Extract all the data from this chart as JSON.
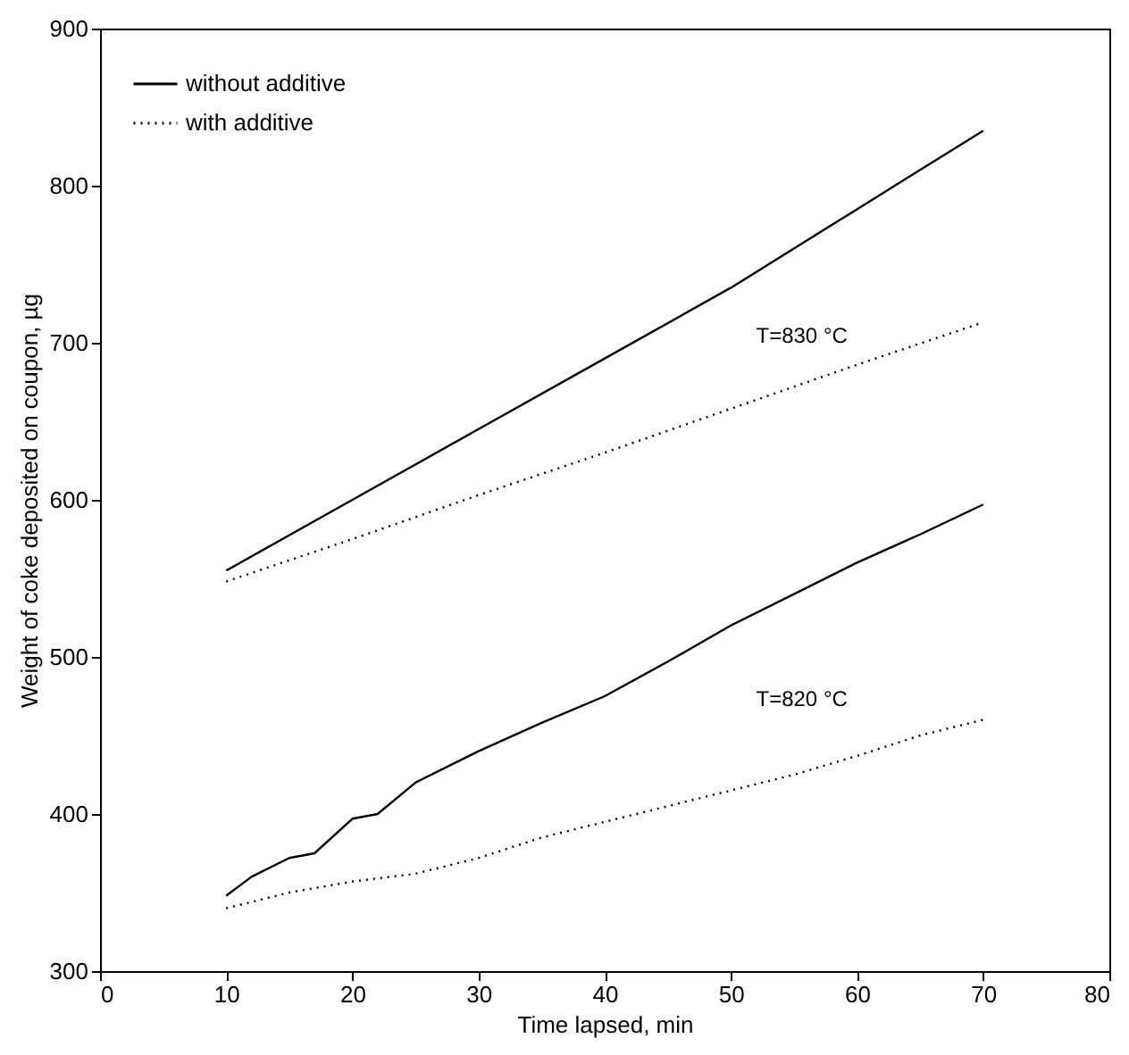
{
  "chart_data": {
    "type": "line",
    "xlabel": "Time lapsed, min",
    "ylabel": "Weight of coke deposited on coupon, µg",
    "xlim": [
      0,
      80
    ],
    "ylim": [
      300,
      900
    ],
    "xticks": [
      0,
      10,
      20,
      30,
      40,
      50,
      60,
      70,
      80
    ],
    "yticks": [
      300,
      400,
      500,
      600,
      700,
      800,
      900
    ],
    "grid": false,
    "legend": "top left",
    "marker": "none",
    "annotations": [
      "T=830 °C",
      "T=820 °C"
    ],
    "series": [
      {
        "name": "without additive",
        "color": "#000000",
        "line_style": "solid",
        "x": [
          10,
          20,
          30,
          40,
          50,
          60,
          70
        ],
        "values": [
          555,
          600,
          645,
          690,
          735,
          785,
          835
        ]
      },
      {
        "name": "with additive",
        "color": "#000000",
        "line_style": "dotted",
        "x": [
          10,
          20,
          30,
          40,
          50,
          60,
          70
        ],
        "values": [
          548,
          575,
          603,
          630,
          658,
          686,
          713
        ]
      },
      {
        "color": "#000000",
        "line_style": "solid",
        "x": [
          10,
          12,
          15,
          17,
          20,
          22,
          25,
          30,
          35,
          40,
          45,
          50,
          55,
          60,
          65,
          70
        ],
        "values": [
          348,
          360,
          372,
          375,
          397,
          400,
          420,
          440,
          458,
          475,
          497,
          520,
          540,
          560,
          578,
          597
        ]
      },
      {
        "color": "#000000",
        "line_style": "dotted",
        "x": [
          10,
          15,
          20,
          25,
          30,
          35,
          40,
          45,
          50,
          55,
          60,
          65,
          70
        ],
        "values": [
          340,
          350,
          357,
          362,
          372,
          385,
          395,
          405,
          415,
          425,
          437,
          450,
          460
        ]
      }
    ]
  }
}
